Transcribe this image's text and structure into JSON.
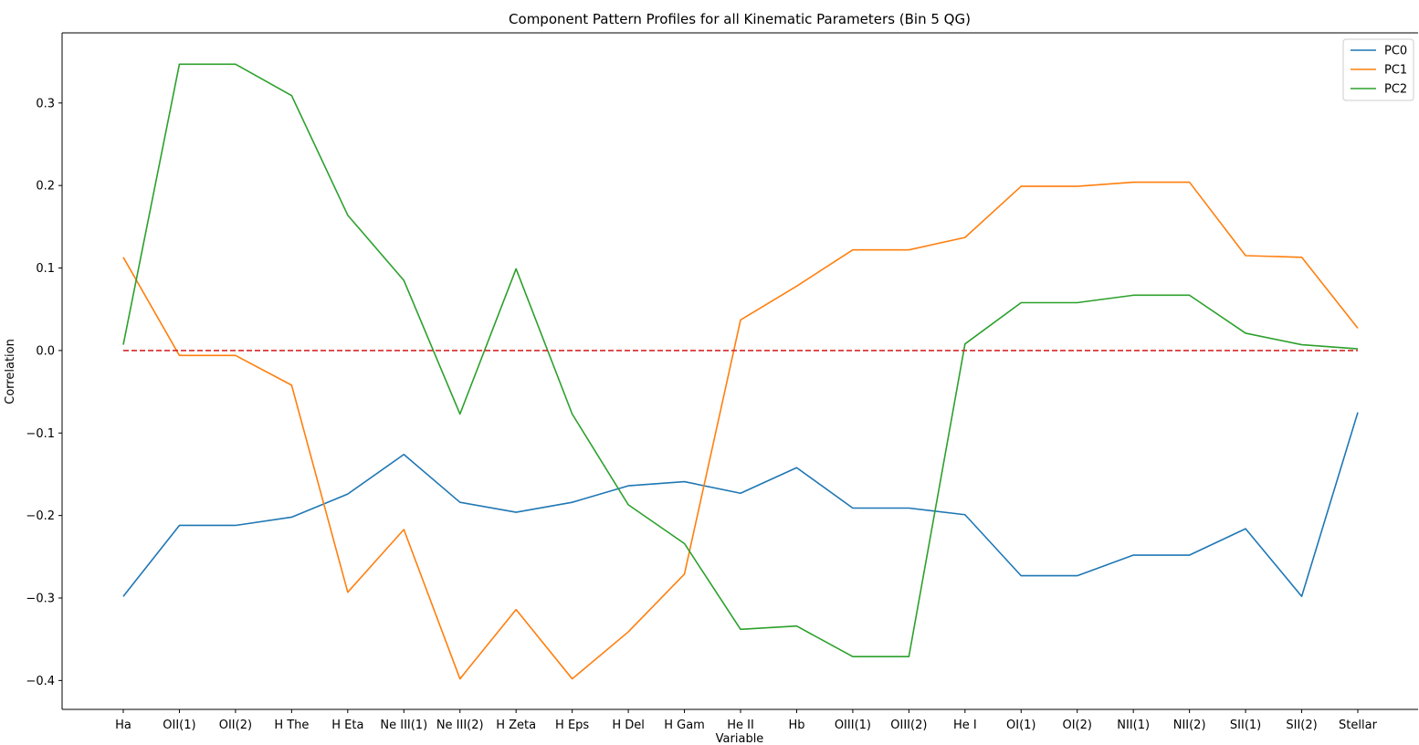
{
  "chart_data": {
    "type": "line",
    "title": "Component Pattern Profiles for all Kinematic Parameters (Bin 5 QG)",
    "xlabel": "Variable",
    "ylabel": "Correlation",
    "categories": [
      "Ha",
      "OII(1)",
      "OII(2)",
      "H The",
      "H Eta",
      "Ne III(1)",
      "Ne III(2)",
      "H Zeta",
      "H Eps",
      "H Del",
      "H Gam",
      "He II",
      "Hb",
      "OIII(1)",
      "OIII(2)",
      "He I",
      "OI(1)",
      "OI(2)",
      "NII(1)",
      "NII(2)",
      "SII(1)",
      "SII(2)",
      "Stellar"
    ],
    "ylim": [
      -0.435,
      0.385
    ],
    "yticks": [
      -0.4,
      -0.3,
      -0.2,
      -0.1,
      0.0,
      0.1,
      0.2,
      0.3
    ],
    "ytick_labels": [
      "−0.4",
      "−0.3",
      "−0.2",
      "−0.1",
      "0.0",
      "0.1",
      "0.2",
      "0.3"
    ],
    "series": [
      {
        "name": "PC0",
        "color": "#1f77b4",
        "values": [
          -0.298,
          -0.212,
          -0.212,
          -0.202,
          -0.174,
          -0.126,
          -0.184,
          -0.196,
          -0.184,
          -0.164,
          -0.159,
          -0.173,
          -0.142,
          -0.191,
          -0.191,
          -0.199,
          -0.273,
          -0.273,
          -0.248,
          -0.248,
          -0.216,
          -0.298,
          -0.075
        ]
      },
      {
        "name": "PC1",
        "color": "#ff7f0e",
        "values": [
          0.113,
          -0.006,
          -0.006,
          -0.042,
          -0.293,
          -0.217,
          -0.398,
          -0.314,
          -0.398,
          -0.341,
          -0.271,
          0.037,
          0.078,
          0.122,
          0.122,
          0.137,
          0.199,
          0.199,
          0.204,
          0.204,
          0.115,
          0.113,
          0.027
        ]
      },
      {
        "name": "PC2",
        "color": "#2ca02c",
        "values": [
          0.007,
          0.347,
          0.347,
          0.309,
          0.164,
          0.085,
          -0.077,
          0.099,
          -0.077,
          -0.187,
          -0.234,
          -0.338,
          -0.334,
          -0.371,
          -0.371,
          0.008,
          0.058,
          0.058,
          0.067,
          0.067,
          0.021,
          0.007,
          0.002
        ]
      }
    ],
    "reference_line": {
      "y": 0.0,
      "color": "#d62728",
      "style": "dashed"
    },
    "legend": {
      "position": "top-right"
    },
    "grid": false
  }
}
